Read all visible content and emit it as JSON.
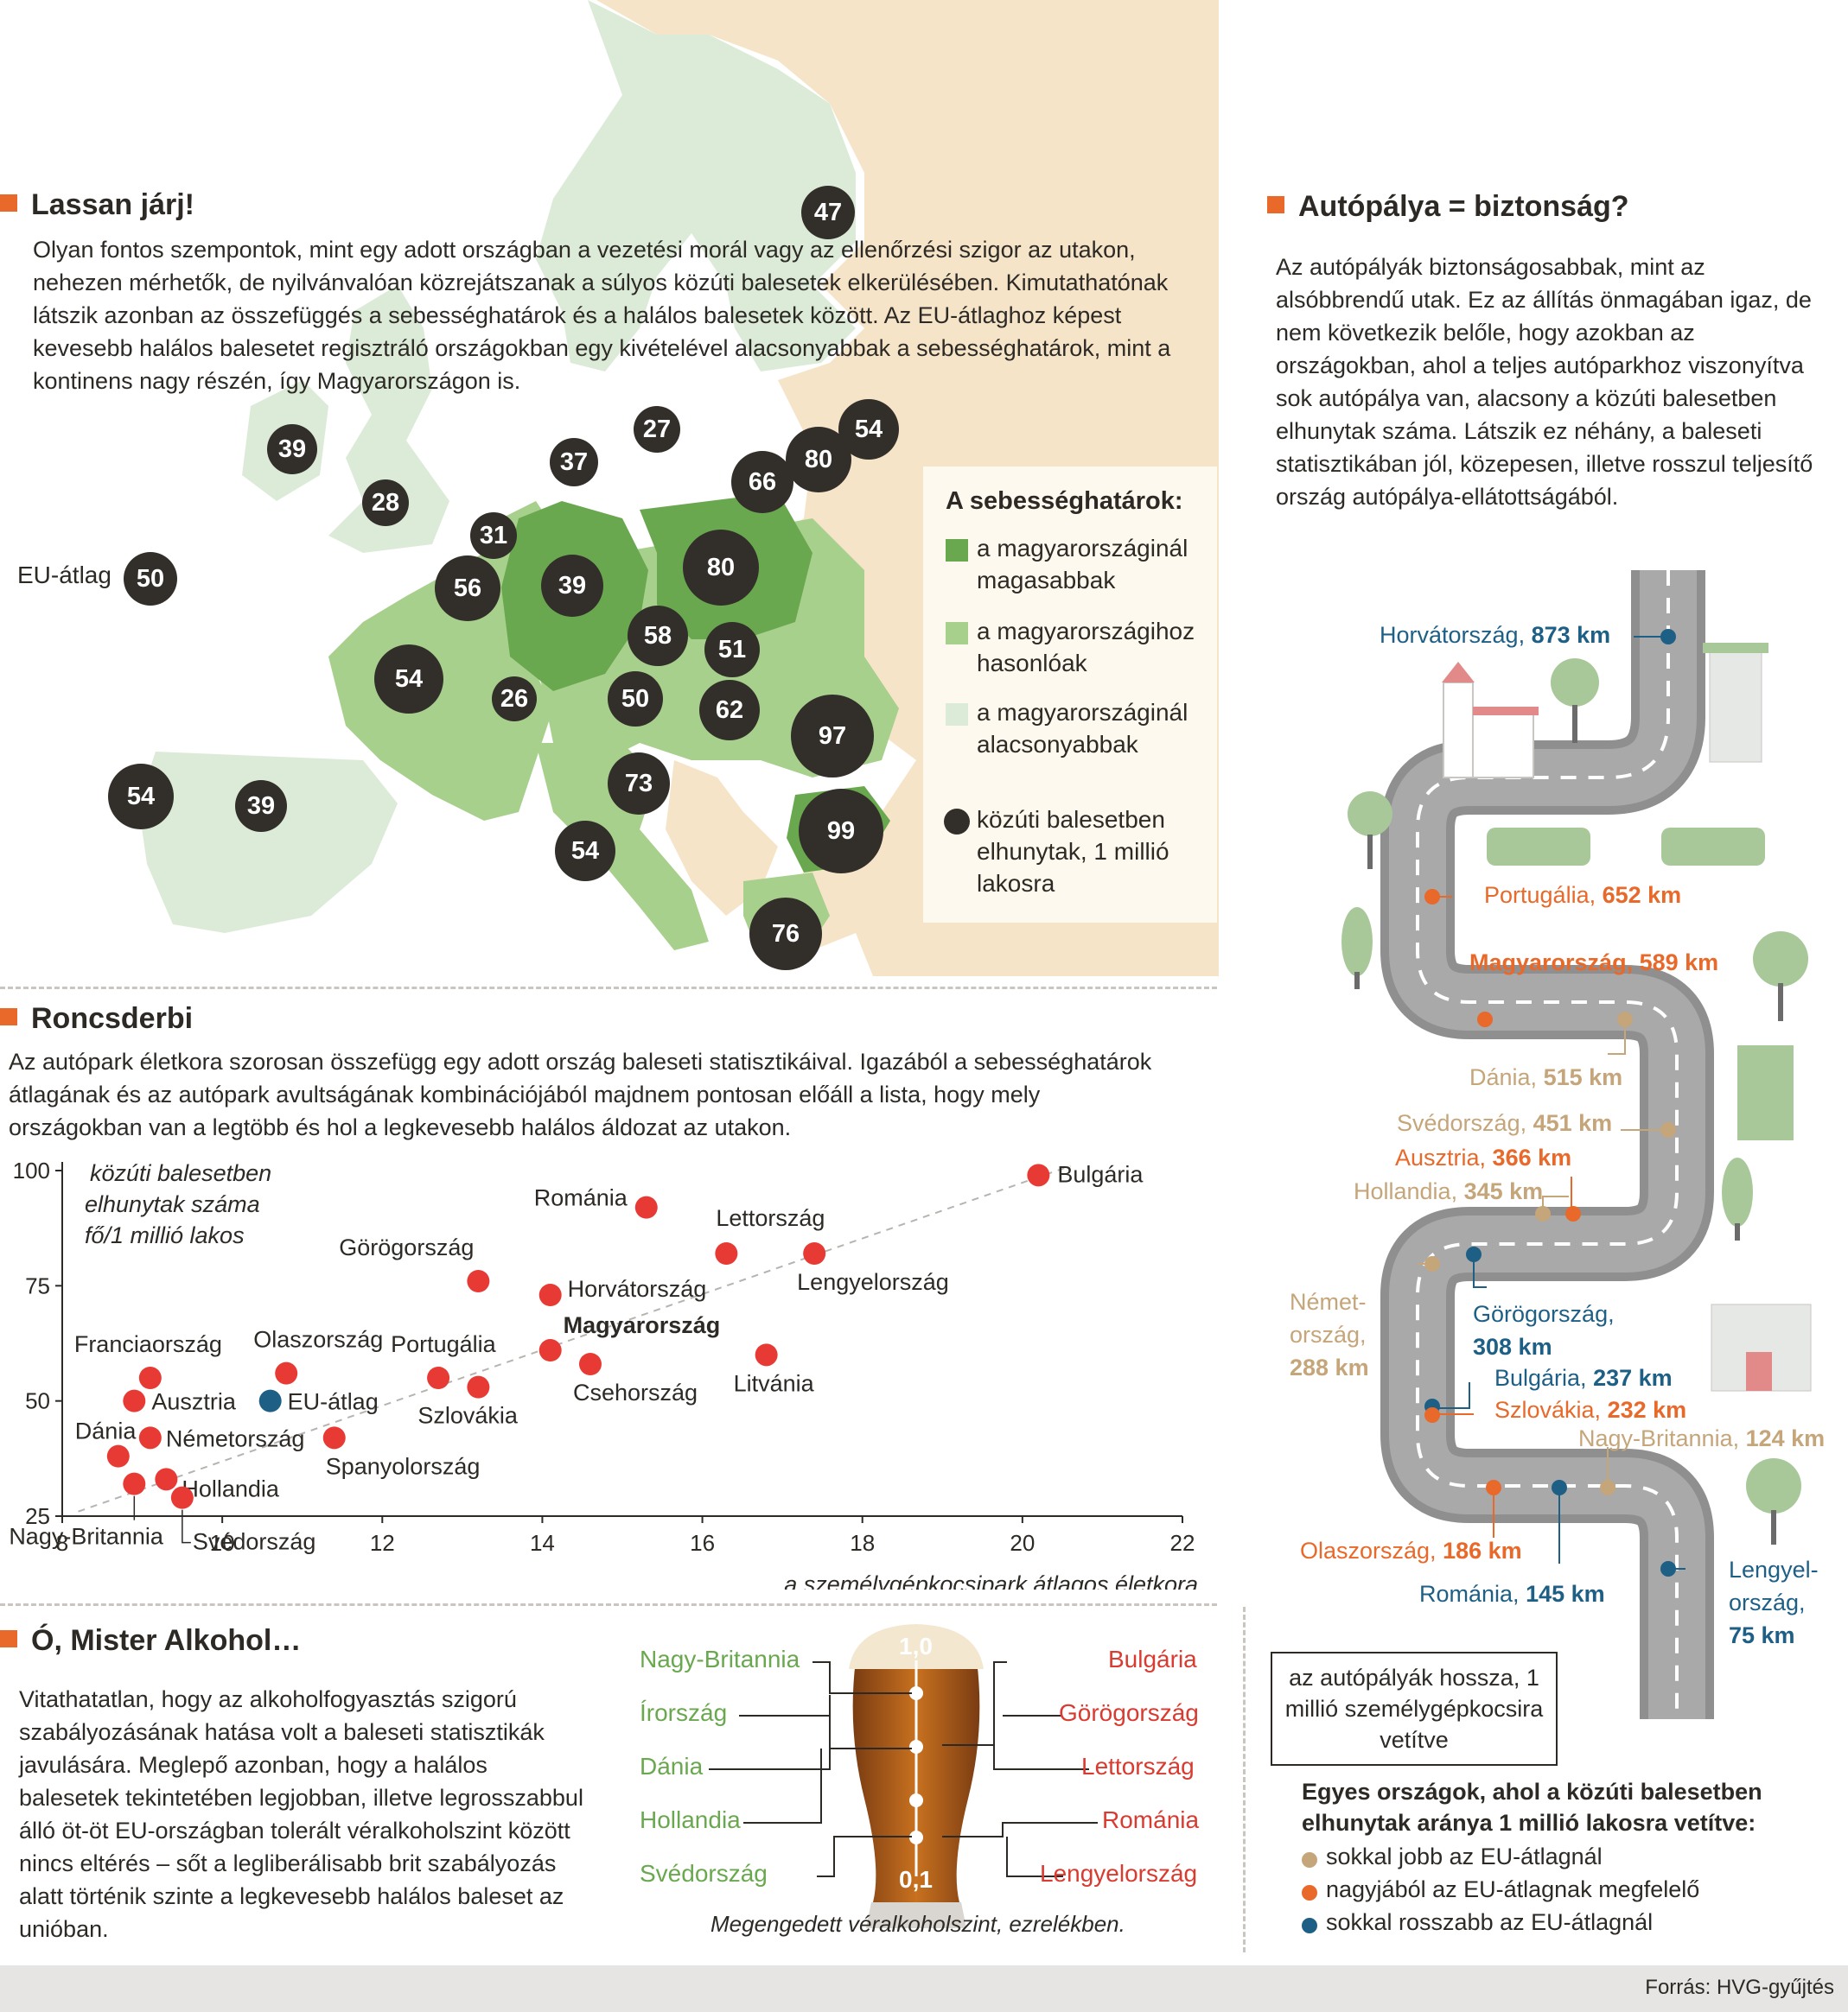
{
  "map_section": {
    "title": "Lassan járj!",
    "body": "Olyan fontos szempontok, mint egy adott országban a vezetési morál vagy az ellenőrzési szigor az utakon, nehezen mérhetők, de nyilvánvalóan közrejátszanak a súlyos közúti balesetek elkerülésében. Kimutathatónak látszik azonban az összefüggés a sebességhatárok és a halálos balesetek között. Az EU-átlaghoz képest kevesebb halálos balesetet regisztráló országokban egy kivételével alacsonyabbak a sebességhatárok, mint a kontinens nagy részén, így Magyarországon is.",
    "eu_avg_label": "EU-átlag",
    "eu_avg_value": "50",
    "bubbles": [
      "47",
      "39",
      "28",
      "31",
      "37",
      "27",
      "66",
      "80",
      "54",
      "56",
      "39",
      "80",
      "58",
      "51",
      "54",
      "26",
      "50",
      "62",
      "97",
      "54",
      "39",
      "73",
      "99",
      "54",
      "76"
    ],
    "legend": {
      "title": "A sebességhatárok:",
      "higher": "a magyarországinál magasabbak",
      "similar": "a magyarországihoz hasonlóak",
      "lower": "a magyarországinál alacsonyabbak",
      "deaths": "közúti balesetben elhunytak, 1 millió lakosra"
    },
    "colors": {
      "higher": "#6aa84f",
      "similar": "#a8d08d",
      "lower": "#dcebd8",
      "non_eu": "#f5e4c8",
      "bubble": "#322e2a"
    }
  },
  "scatter_section": {
    "title": "Roncsderbi",
    "body": "Az autópark életkora szorosan összefügg egy adott ország baleseti statisztikáival. Igazából a sebességhatárok átlagának és az autópark avultságának kombinációjából majdnem pontosan előáll a lista, hogy mely országokban van a legtöbb és hol a legkevesebb halálos áldozat az utakon."
  },
  "chart_data": {
    "type": "scatter",
    "title": "",
    "xlabel": "a személygépkocsipark átlagos életkora",
    "ylabel": "közúti balesetben elhunytak száma fő/1 millió lakos",
    "xlim": [
      8,
      22
    ],
    "ylim": [
      25,
      100
    ],
    "xticks": [
      "8",
      "10",
      "12",
      "14",
      "16",
      "18",
      "20",
      "22"
    ],
    "yticks": [
      "25",
      "50",
      "75",
      "100"
    ],
    "trendline": "dashed",
    "series": [
      {
        "points": [
          {
            "label": "Bulgária",
            "x": 20.2,
            "y": 99
          },
          {
            "label": "Románia",
            "x": 15.3,
            "y": 92
          },
          {
            "label": "Lettország",
            "x": 16.3,
            "y": 82
          },
          {
            "label": "Lengyelország",
            "x": 17.4,
            "y": 82
          },
          {
            "label": "Görögország",
            "x": 13.2,
            "y": 76
          },
          {
            "label": "Horvátország",
            "x": 14.1,
            "y": 73
          },
          {
            "label": "Magyarország",
            "x": 14.1,
            "y": 61
          },
          {
            "label": "Csehország",
            "x": 14.6,
            "y": 58
          },
          {
            "label": "Litvánia",
            "x": 16.8,
            "y": 60
          },
          {
            "label": "Portugália",
            "x": 12.7,
            "y": 55
          },
          {
            "label": "Szlovákia",
            "x": 13.2,
            "y": 53
          },
          {
            "label": "Olaszország",
            "x": 10.8,
            "y": 56
          },
          {
            "label": "Franciaország",
            "x": 9.1,
            "y": 55
          },
          {
            "label": "Ausztria",
            "x": 8.9,
            "y": 50
          },
          {
            "label": "Németország",
            "x": 9.1,
            "y": 42
          },
          {
            "label": "Spanyolország",
            "x": 11.4,
            "y": 42
          },
          {
            "label": "Dánia",
            "x": 8.7,
            "y": 38
          },
          {
            "label": "Hollandia",
            "x": 9.3,
            "y": 33
          },
          {
            "label": "Nagy-Britannia",
            "x": 8.9,
            "y": 32
          },
          {
            "label": "Svédország",
            "x": 9.5,
            "y": 29
          }
        ]
      },
      {
        "points": [
          {
            "label": "EU-átlag",
            "x": 10.6,
            "y": 50
          }
        ]
      }
    ],
    "colors": {
      "countries": "#e83a34",
      "eu": "#1e5f86"
    }
  },
  "alcohol_section": {
    "title": "Ó, Mister Alkohol…",
    "body": "Vitathatatlan, hogy az alkoholfogyasztás szigorú szabályozásának hatása volt a baleseti statisztikák javulására. Meglepő azonban, hogy a halálos balesetek tekintetében legjobban, illetve legrosszabbul álló öt-öt EU-országban tolerált véralkoholszint között nincs eltérés – sőt a legliberálisabb brit szabályozás alatt történik szinte a legkevesebb halálos baleset az unióban.",
    "best": [
      "Nagy-Britannia",
      "Írország",
      "Dánia",
      "Hollandia",
      "Svédország"
    ],
    "worst": [
      "Bulgária",
      "Görögország",
      "Lettország",
      "Románia",
      "Lengyelország"
    ],
    "scale_top": "1,0",
    "scale_bottom": "0,1",
    "caption": "Megengedett véralkoholszint, ezrelékben."
  },
  "highway_section": {
    "title": "Autópálya = biztonság?",
    "body": "Az autópályák biztonságosabbak, mint az alsóbbrendű utak. Ez az állítás önmagában igaz, de nem következik belőle, hogy azokban az országokban, ahol a teljes autóparkhoz viszonyítva sok autópálya van, alacsony a közúti balesetben elhunytak száma. Látszik ez néhány, a baleseti statisztikában jól, közepesen, illetve rosszul teljesítő ország autópálya-ellátottságából.",
    "countries": [
      {
        "name": "Horvátország, ",
        "value": "873 km",
        "cat": "blue"
      },
      {
        "name": "Portugália, ",
        "value": "652 km",
        "cat": "orange"
      },
      {
        "name": "Magyarország, ",
        "value": "589 km",
        "cat": "orange"
      },
      {
        "name": "Dánia, ",
        "value": "515 km",
        "cat": "tan"
      },
      {
        "name": "Svédország, ",
        "value": "451 km",
        "cat": "tan"
      },
      {
        "name": "Ausztria, ",
        "value": "366 km",
        "cat": "orange"
      },
      {
        "name": "Hollandia, ",
        "value": "345 km",
        "cat": "tan"
      },
      {
        "name": "Német-",
        "name2": "ország,",
        "value": "288 km",
        "cat": "tan"
      },
      {
        "name": "Görögország,",
        "value": "308 km",
        "cat": "blue"
      },
      {
        "name": "Bulgária, ",
        "value": "237 km",
        "cat": "blue"
      },
      {
        "name": "Szlovákia, ",
        "value": "232 km",
        "cat": "orange"
      },
      {
        "name": "Nagy-Britannia, ",
        "value": "124 km",
        "cat": "tan"
      },
      {
        "name": "Olaszország, ",
        "value": "186 km",
        "cat": "orange"
      },
      {
        "name": "Románia, ",
        "value": "145 km",
        "cat": "blue"
      },
      {
        "name": "Lengyel-",
        "name2": "ország,",
        "value": "75 km",
        "cat": "blue"
      }
    ],
    "unit_note": "az autópályák hossza, 1 millió személygépkocsira vetítve",
    "legend_title": "Egyes országok, ahol a közúti balesetben elhunytak aránya 1 millió lakosra vetítve:",
    "legend": [
      "sokkal jobb az EU-átlagnál",
      "nagyjából az EU-átlagnak megfelelő",
      "sokkal rosszabb az EU-átlagnál"
    ],
    "colors": {
      "blue": "#1e5f86",
      "orange": "#e8692a",
      "tan": "#c5a57a",
      "road": "#a9a9a9"
    }
  },
  "footer": {
    "source": "Forrás: HVG-gyűjtés"
  }
}
